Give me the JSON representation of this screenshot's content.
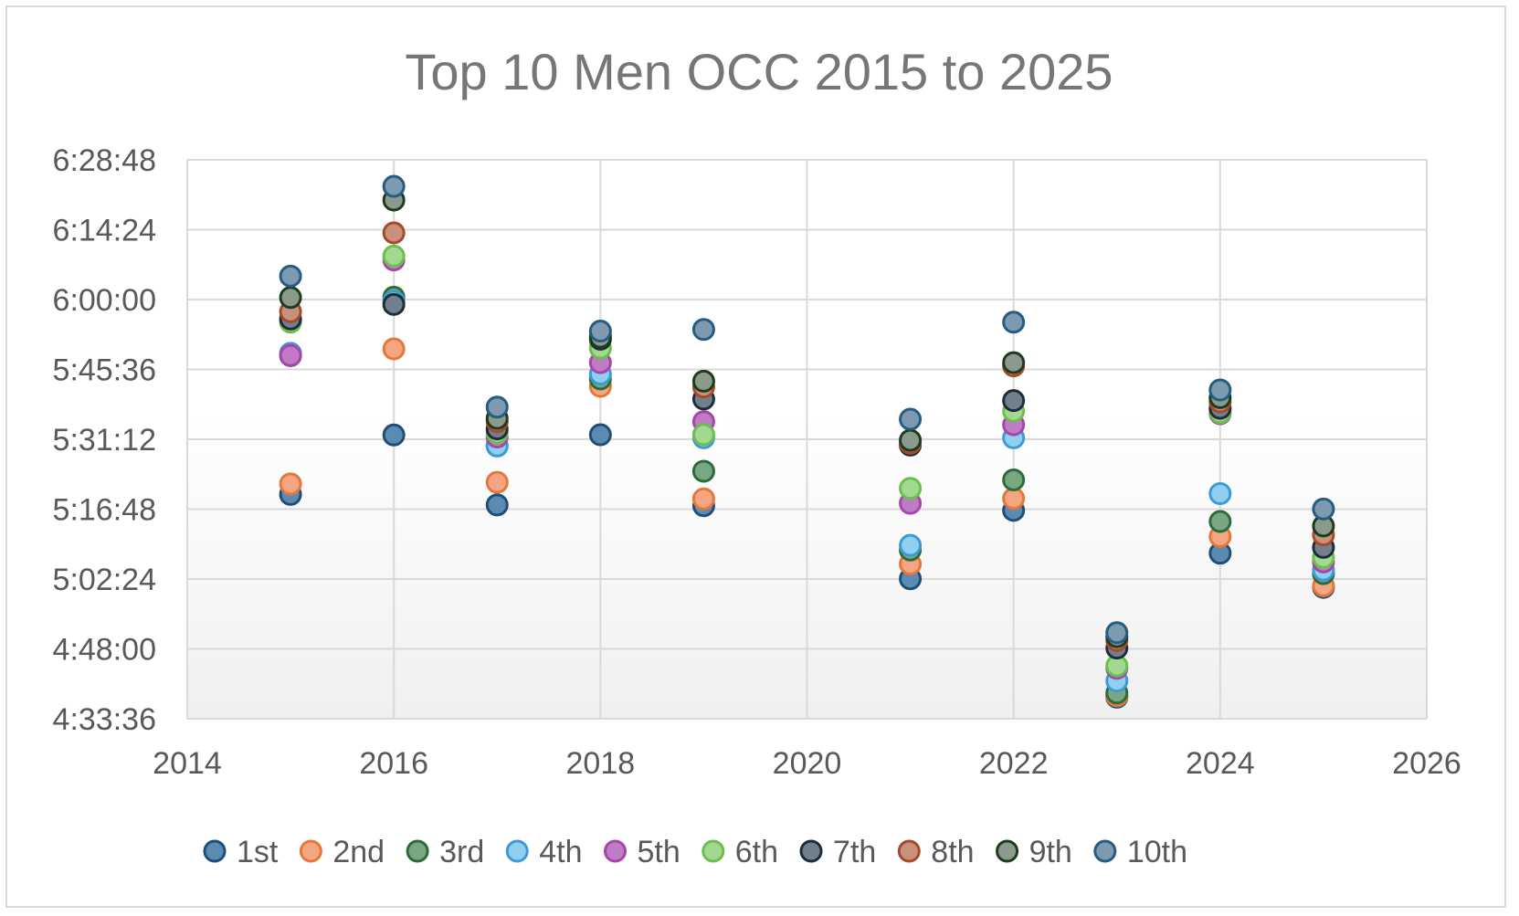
{
  "chart_data": {
    "type": "scatter",
    "title": "Top 10 Men OCC 2015 to 2025",
    "xlabel": "",
    "ylabel": "",
    "xlim": [
      2014,
      2026
    ],
    "x_ticks": [
      2014,
      2016,
      2018,
      2020,
      2022,
      2024,
      2026
    ],
    "x_tick_labels": [
      "2014",
      "2016",
      "2018",
      "2020",
      "2022",
      "2024",
      "2026"
    ],
    "ylim_seconds": [
      16416,
      23328
    ],
    "y_ticks_seconds": [
      16416,
      17280,
      18144,
      19008,
      19872,
      20736,
      21600,
      22464,
      23328
    ],
    "y_tick_labels": [
      "4:33:36",
      "4:48:00",
      "5:02:24",
      "5:16:48",
      "5:31:12",
      "5:45:36",
      "6:00:00",
      "6:14:24",
      "6:28:48"
    ],
    "grid": true,
    "legend_position": "bottom",
    "x": [
      2015,
      2016,
      2017,
      2018,
      2019,
      2021,
      2022,
      2023,
      2024,
      2025
    ],
    "series": [
      {
        "name": "1st",
        "fill": "#5b8bb0",
        "stroke": "#1f4e79",
        "values": [
          19190,
          19925,
          19060,
          19928,
          19050,
          18147,
          18993,
          16683,
          18463,
          18040
        ]
      },
      {
        "name": "2nd",
        "fill": "#f4a582",
        "stroke": "#e5773a",
        "values": [
          19320,
          20990,
          19340,
          20527,
          19135,
          18330,
          19140,
          16700,
          18670,
          18060
        ]
      },
      {
        "name": "3rd",
        "fill": "#7aa783",
        "stroke": "#2e6b3a",
        "values": [
          20906,
          21630,
          19790,
          20618,
          19477,
          18502,
          19370,
          16735,
          18855,
          18210
        ]
      },
      {
        "name": "4th",
        "fill": "#8fd0ee",
        "stroke": "#3d9ad6",
        "values": [
          20935,
          21580,
          19790,
          20680,
          19890,
          18560,
          19890,
          16883,
          19200,
          18255
        ]
      },
      {
        "name": "5th",
        "fill": "#c07bc5",
        "stroke": "#a447a8",
        "values": [
          20908,
          22090,
          19900,
          20820,
          20090,
          19080,
          20052,
          17040,
          20188,
          18355
        ]
      },
      {
        "name": "6th",
        "fill": "#a3d890",
        "stroke": "#6bbf4f",
        "values": [
          21320,
          22138,
          19950,
          21000,
          19930,
          19265,
          20220,
          17070,
          20200,
          18410
        ]
      },
      {
        "name": "7th",
        "fill": "#70808f",
        "stroke": "#1f2d3a",
        "values": [
          21360,
          21540,
          20000,
          21110,
          20370,
          19800,
          20350,
          17290,
          20255,
          18535
        ]
      },
      {
        "name": "8th",
        "fill": "#c9907c",
        "stroke": "#a8492c",
        "values": [
          21450,
          22425,
          20090,
          21160,
          20520,
          19823,
          20780,
          17385,
          20335,
          18690
        ]
      },
      {
        "name": "9th",
        "fill": "#8c9a8e",
        "stroke": "#1c3d1c",
        "values": [
          21625,
          22830,
          20130,
          21135,
          20590,
          19860,
          20820,
          17430,
          20387,
          18800
        ]
      },
      {
        "name": "10th",
        "fill": "#7d9ab1",
        "stroke": "#265c82",
        "values": [
          21890,
          23000,
          20270,
          21210,
          21230,
          20120,
          21320,
          17480,
          20482,
          19010
        ]
      }
    ]
  }
}
